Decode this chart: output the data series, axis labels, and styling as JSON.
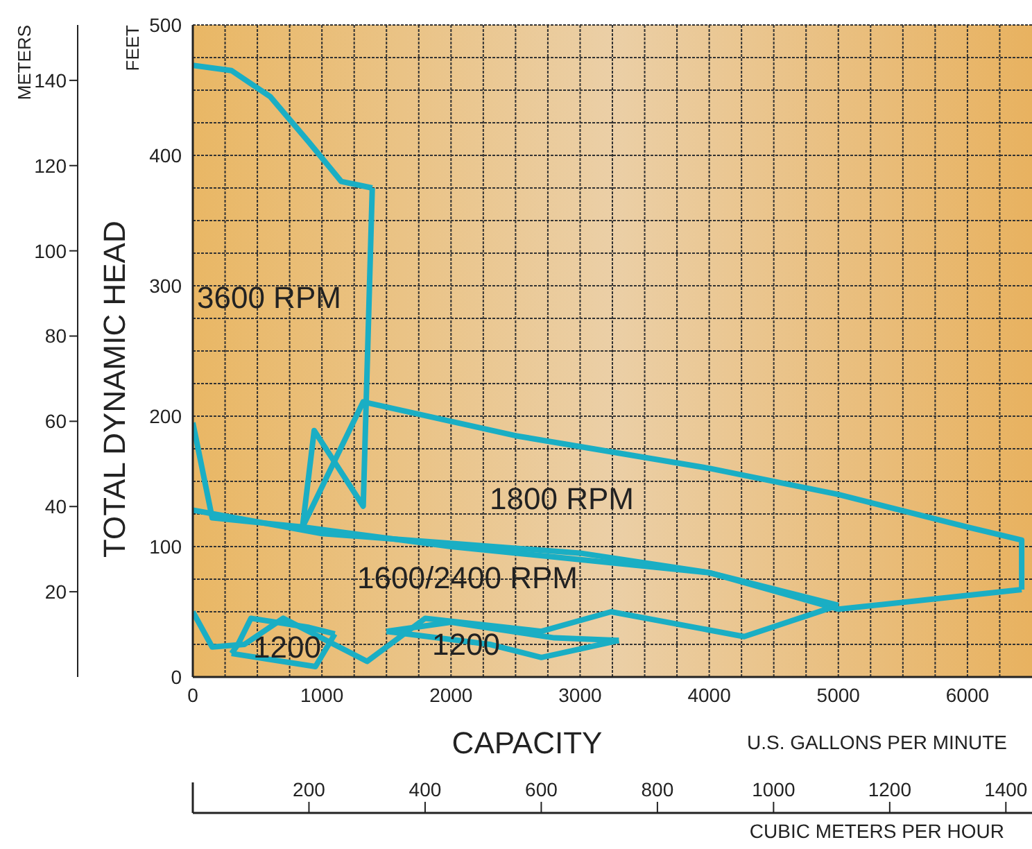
{
  "chart_data": {
    "type": "line",
    "xlabel": "U.S. GALLONS PER MINUTE",
    "x2label": "CUBIC METERS PER HOUR",
    "ylabel": "FEET",
    "y2label": "METERS",
    "annotations": [
      "TOTAL DYNAMIC HEAD",
      "CAPACITY",
      "3600 RPM",
      "1800 RPM",
      "1600/2400 RPM",
      "1200",
      "1200"
    ],
    "xlim": [
      0,
      6500
    ],
    "xticks": [
      0,
      {
        "value": 250,
        "label": null
      },
      {
        "value": 500,
        "label": null
      },
      {
        "value": 750,
        "label": null
      },
      1000,
      {
        "value": 1250,
        "label": null
      },
      {
        "value": 1500,
        "label": null
      },
      {
        "value": 1750,
        "label": null
      },
      2000,
      {
        "value": 2250,
        "label": null
      },
      {
        "value": 2500,
        "label": null
      },
      {
        "value": 2750,
        "label": null
      },
      3000,
      {
        "value": 3250,
        "label": null
      },
      {
        "value": 3500,
        "label": null
      },
      {
        "value": 3750,
        "label": null
      },
      4000,
      {
        "value": 4250,
        "label": null
      },
      {
        "value": 4500,
        "label": null
      },
      {
        "value": 4750,
        "label": null
      },
      5000,
      {
        "value": 5250,
        "label": null
      },
      {
        "value": 5500,
        "label": null
      },
      {
        "value": 5750,
        "label": null
      },
      6000,
      {
        "value": 6250,
        "label": null
      }
    ],
    "x2lim": [
      0,
      1445
    ],
    "x2ticks": [
      200,
      400,
      600,
      800,
      1000,
      1200,
      1400
    ],
    "ylim": [
      0,
      500
    ],
    "yticks": [
      0,
      {
        "value": 25,
        "label": null
      },
      {
        "value": 50,
        "label": null
      },
      {
        "value": 75,
        "label": null
      },
      100,
      {
        "value": 125,
        "label": null
      },
      {
        "value": 150,
        "label": null
      },
      {
        "value": 175,
        "label": null
      },
      200,
      {
        "value": 225,
        "label": null
      },
      {
        "value": 250,
        "label": null
      },
      {
        "value": 275,
        "label": null
      },
      300,
      {
        "value": 325,
        "label": null
      },
      {
        "value": 350,
        "label": null
      },
      {
        "value": 375,
        "label": null
      },
      400,
      {
        "value": 425,
        "label": null
      },
      {
        "value": 450,
        "label": null
      },
      {
        "value": 475,
        "label": null
      },
      500
    ],
    "y2lim": [
      0,
      153
    ],
    "y2ticks": [
      20,
      40,
      60,
      80,
      100,
      120,
      140
    ],
    "grid": true,
    "marker": "none",
    "series": [
      {
        "color": "#1aaec4",
        "x": [
          0,
          300,
          600,
          900,
          1150,
          1390
        ],
        "values": [
          469,
          465,
          445,
          410,
          380,
          375
        ]
      },
      {
        "color": "#1aaec4",
        "x": [
          0,
          150,
          850,
          940,
          1320,
          1390
        ],
        "values": [
          195,
          122,
          115,
          189,
          131,
          375
        ]
      },
      {
        "color": "#1aaec4",
        "x": [
          850,
          1320,
          2500,
          4000,
          5000,
          6000,
          6420,
          6420
        ],
        "values": [
          115,
          211,
          185,
          160,
          140,
          115,
          105,
          67
        ]
      },
      {
        "color": "#1aaec4",
        "x": [
          850,
          2000,
          4000,
          5000,
          6420
        ],
        "values": [
          115,
          100,
          80,
          52,
          67
        ]
      },
      {
        "color": "#1aaec4",
        "x": [
          0,
          1000,
          3000,
          4000,
          5000
        ],
        "values": [
          128,
          110,
          95,
          80,
          55
        ]
      },
      {
        "color": "#1aaec4",
        "x": [
          0,
          150,
          400,
          700,
          1350,
          1800,
          2700,
          3240,
          4270,
          5000
        ],
        "values": [
          50,
          23,
          25,
          45,
          12,
          45,
          35,
          50,
          31,
          55
        ]
      },
      {
        "color": "#1aaec4",
        "x": [
          300,
          350,
          450,
          900,
          1100
        ],
        "values": [
          18,
          25,
          45,
          38,
          33
        ]
      },
      {
        "color": "#1aaec4",
        "x": [
          300,
          950,
          1100
        ],
        "values": [
          18,
          8,
          33
        ]
      },
      {
        "color": "#1aaec4",
        "x": [
          1500,
          2000,
          2800,
          3300
        ],
        "values": [
          35,
          42,
          30,
          28
        ]
      },
      {
        "color": "#1aaec4",
        "x": [
          1500,
          2300,
          2700,
          3300
        ],
        "values": [
          35,
          25,
          15,
          28
        ]
      }
    ]
  }
}
